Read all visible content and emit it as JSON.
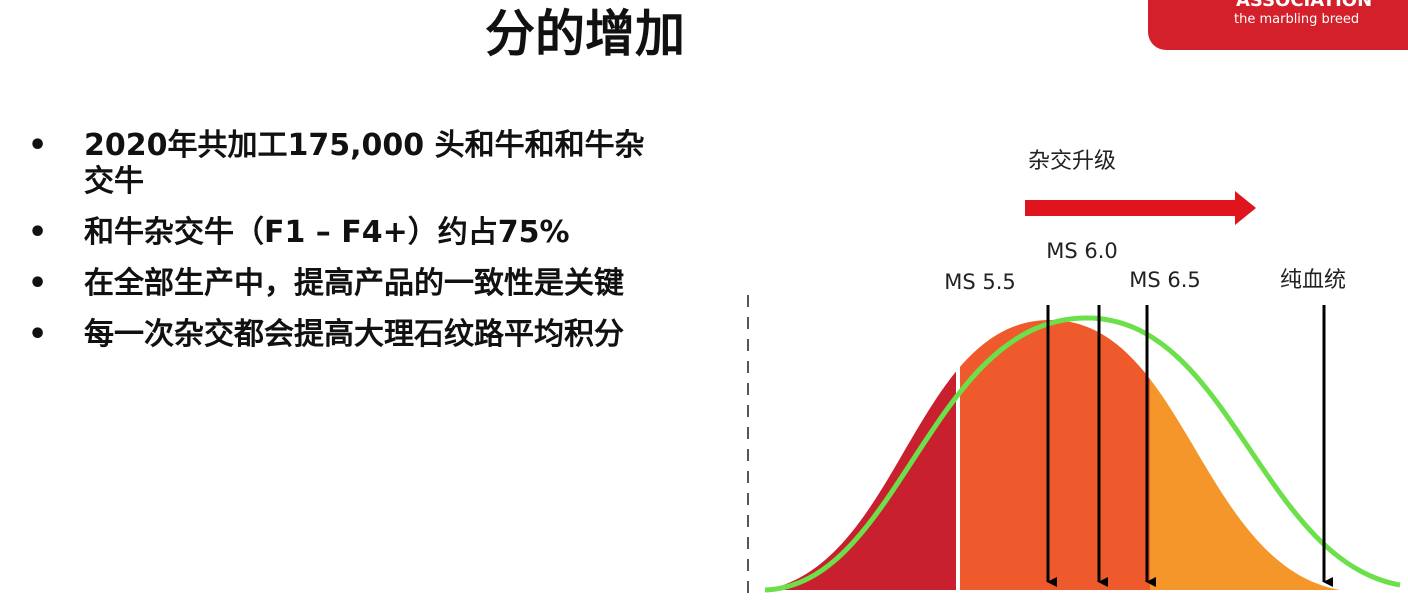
{
  "header": {
    "title": "分的增加",
    "logo": {
      "name": "ASSOCIATION",
      "tagline": "the marbling breed"
    }
  },
  "bullets": [
    "2020年共加工175,000 头和牛和和牛杂交牛",
    "和牛杂交牛（F1 – F4+）约占75%",
    "在全部生产中，提高产品的一致性是关键",
    "每一次杂交都会提高大理石纹路平均积分"
  ],
  "diagram": {
    "arrow_label": "杂交升级",
    "markers": [
      "MS 5.5",
      "MS 6.0",
      "MS 6.5",
      "纯血统"
    ]
  }
}
